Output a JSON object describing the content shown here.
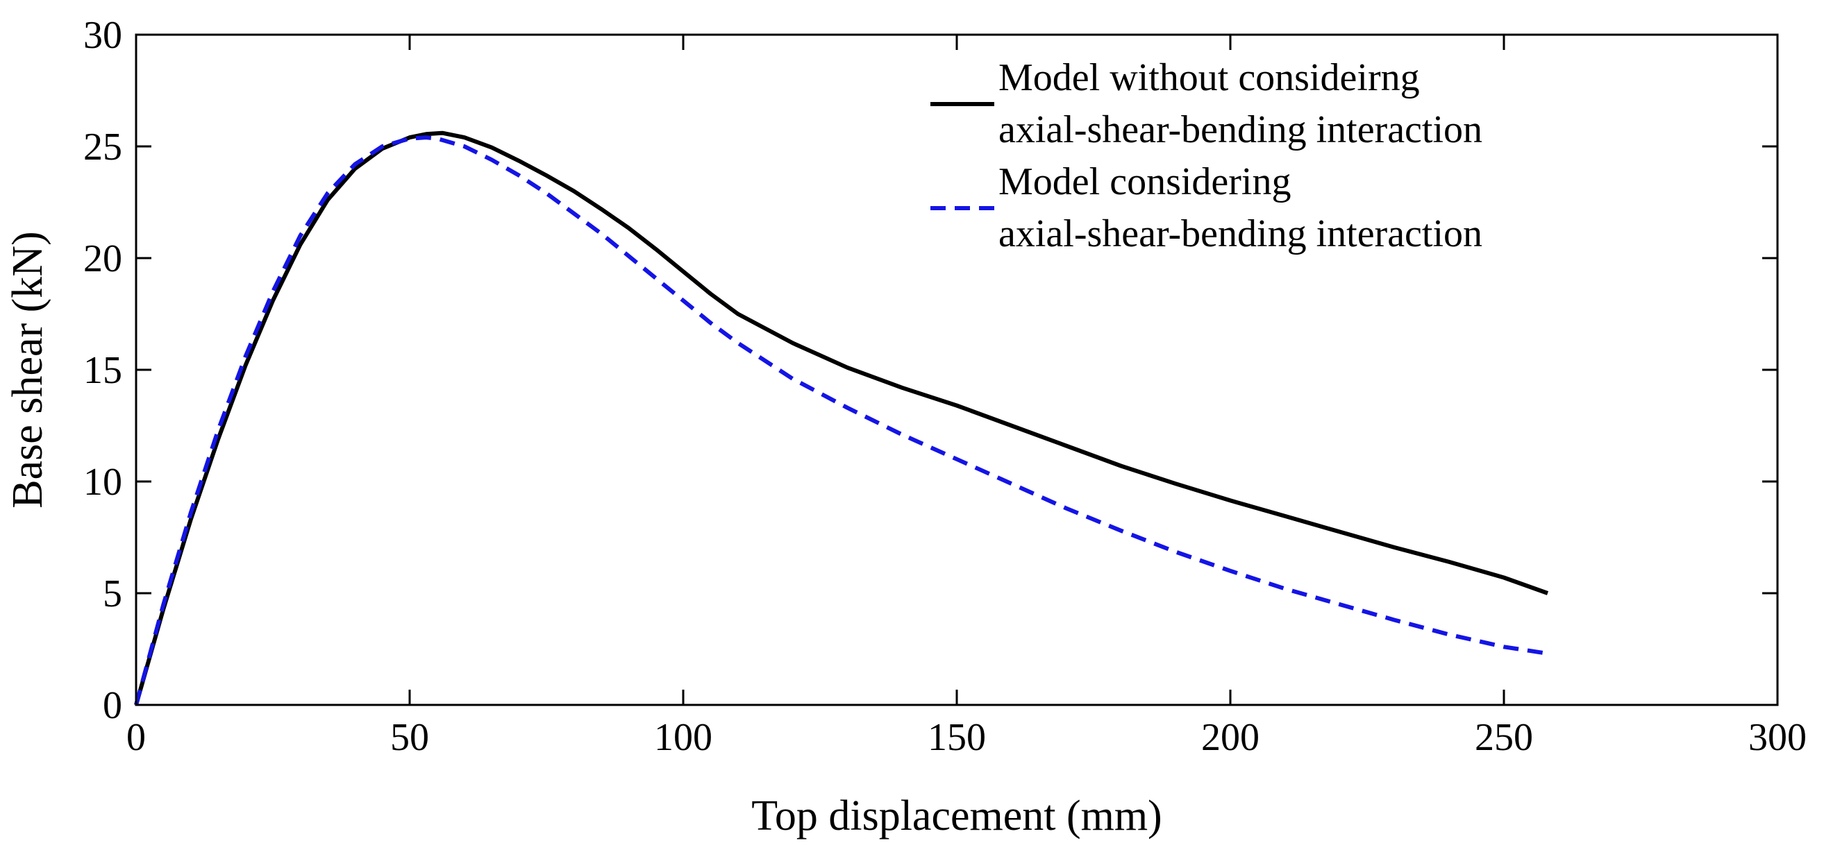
{
  "chart_data": {
    "type": "line",
    "title": "",
    "xlabel": "Top displacement (mm)",
    "ylabel": "Base shear (kN)",
    "xlim": [
      0,
      300
    ],
    "ylim": [
      0,
      30
    ],
    "xticks": [
      0,
      50,
      100,
      150,
      200,
      250,
      300
    ],
    "yticks": [
      0,
      5,
      10,
      15,
      20,
      25,
      30
    ],
    "grid": false,
    "legend_position": "top-right",
    "series": [
      {
        "name": "Model without consideirng axial-shear-bending interaction",
        "legend_lines": [
          "Model without consideirng",
          "axial-shear-bending interaction"
        ],
        "color": "#000000",
        "style": "solid",
        "x": [
          0,
          5,
          10,
          15,
          20,
          25,
          30,
          35,
          40,
          45,
          50,
          53,
          56,
          60,
          65,
          70,
          75,
          80,
          85,
          90,
          95,
          100,
          105,
          110,
          120,
          130,
          140,
          150,
          160,
          170,
          180,
          190,
          200,
          210,
          220,
          230,
          240,
          250,
          258
        ],
        "y": [
          0,
          4.3,
          8.3,
          11.9,
          15.2,
          18.1,
          20.6,
          22.6,
          24.0,
          24.9,
          25.4,
          25.55,
          25.6,
          25.4,
          24.95,
          24.35,
          23.7,
          23.0,
          22.2,
          21.35,
          20.4,
          19.4,
          18.4,
          17.5,
          16.2,
          15.1,
          14.2,
          13.4,
          12.5,
          11.6,
          10.7,
          9.9,
          9.15,
          8.45,
          7.75,
          7.05,
          6.4,
          5.7,
          5.0
        ]
      },
      {
        "name": "Model considering axial-shear-bending interaction",
        "legend_lines": [
          "Model considering",
          "axial-shear-bending interaction"
        ],
        "color": "#1414e6",
        "style": "dashed",
        "x": [
          0,
          5,
          10,
          15,
          20,
          25,
          30,
          35,
          40,
          45,
          50,
          53,
          55,
          60,
          65,
          70,
          75,
          80,
          85,
          90,
          95,
          100,
          105,
          110,
          120,
          130,
          140,
          150,
          160,
          170,
          180,
          190,
          200,
          210,
          220,
          230,
          240,
          250,
          258
        ],
        "y": [
          0,
          4.5,
          8.6,
          12.3,
          15.6,
          18.5,
          21.0,
          22.9,
          24.2,
          25.0,
          25.35,
          25.4,
          25.35,
          25.0,
          24.4,
          23.7,
          22.9,
          22.0,
          21.1,
          20.1,
          19.1,
          18.1,
          17.1,
          16.2,
          14.6,
          13.3,
          12.1,
          11.0,
          9.9,
          8.8,
          7.8,
          6.85,
          6.0,
          5.2,
          4.5,
          3.8,
          3.15,
          2.6,
          2.3
        ]
      }
    ]
  }
}
